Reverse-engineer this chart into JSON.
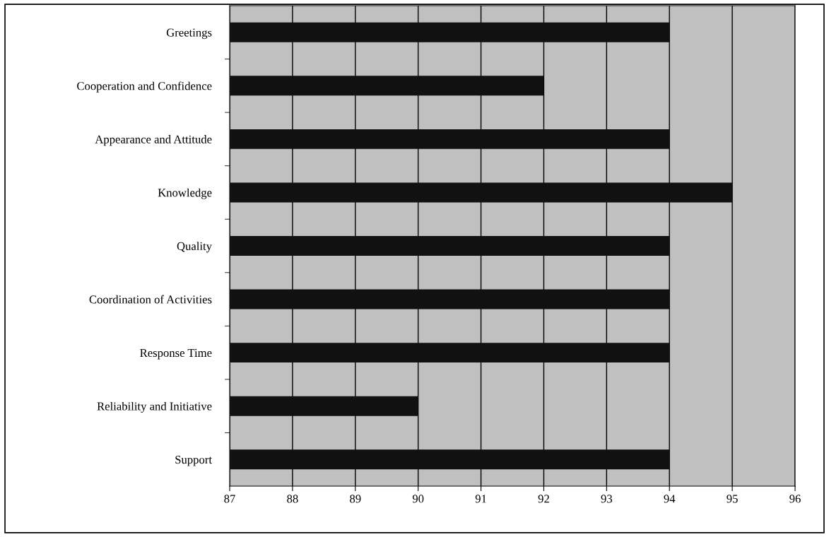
{
  "chart_data": {
    "type": "bar",
    "orientation": "horizontal",
    "categories": [
      "Greetings",
      "Cooperation and Confidence",
      "Appearance and Attitude",
      "Knowledge",
      "Quality",
      "Coordination of Activities",
      "Response Time",
      "Reliability and Initiative",
      "Support"
    ],
    "values": [
      94,
      92,
      94,
      95,
      94,
      94,
      94,
      90,
      94
    ],
    "color": "#111111",
    "xlim": [
      87,
      96
    ],
    "xticks": [
      87,
      88,
      89,
      90,
      91,
      92,
      93,
      94,
      95,
      96
    ],
    "grid": "x"
  }
}
